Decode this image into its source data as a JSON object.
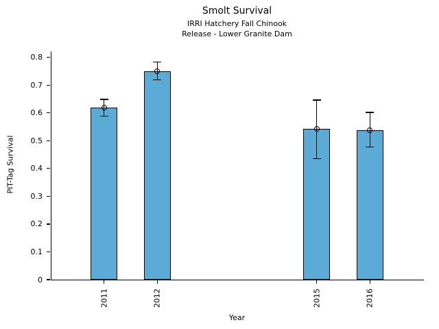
{
  "figure": {
    "title": "Smolt Survival",
    "subtitle_line1": "IRRI Hatchery Fall Chinook",
    "subtitle_line2": "Release - Lower Granite Dam"
  },
  "chart_data": {
    "type": "bar",
    "title": "Smolt Survival",
    "subtitle": [
      "IRRI Hatchery Fall Chinook",
      "Release - Lower Granite Dam"
    ],
    "xlabel": "Year",
    "ylabel": "PIT-Tag Survival",
    "categories": [
      2011,
      2012,
      2015,
      2016
    ],
    "values": [
      0.62,
      0.751,
      0.543,
      0.538
    ],
    "error_low": [
      0.588,
      0.719,
      0.435,
      0.477
    ],
    "error_high": [
      0.649,
      0.783,
      0.647,
      0.602
    ],
    "xlim": [
      2010,
      2017
    ],
    "ylim": [
      0,
      0.822
    ],
    "y_ticks": [
      0,
      0.1,
      0.2,
      0.3,
      0.4,
      0.5,
      0.6,
      0.7,
      0.8
    ],
    "y_tick_labels": [
      "0",
      "0.1",
      "0.2",
      "0.3",
      "0.4",
      "0.5",
      "0.6",
      "0.7",
      "0.8"
    ],
    "x_tick_labels": [
      "2011",
      "2012",
      "2015",
      "2016"
    ],
    "bar_width_years": 0.5,
    "bar_fill_color": "#5BABD6",
    "bar_edge_color": "#000000",
    "errorbar_color": "#000000",
    "marker": "open-circle",
    "grid": false,
    "legend_position": "none"
  }
}
